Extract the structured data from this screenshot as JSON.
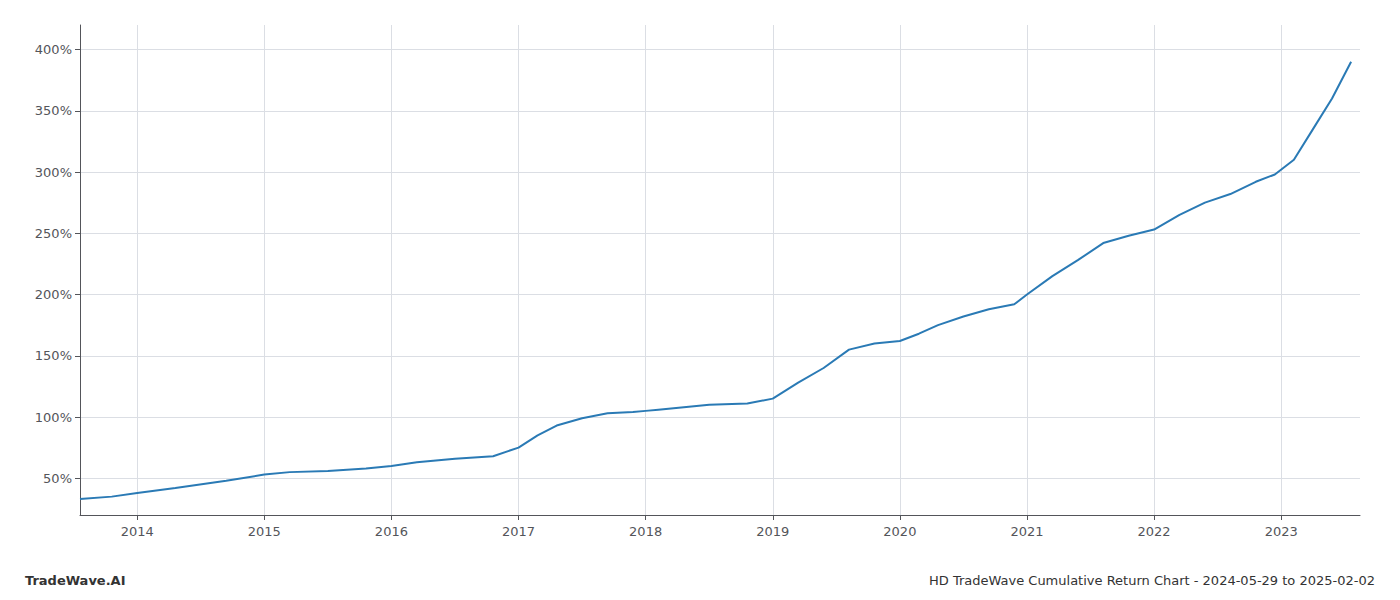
{
  "chart_data": {
    "type": "line",
    "title": "HD TradeWave Cumulative Return Chart - 2024-05-29 to 2025-02-02",
    "annotations": [
      "TradeWave.AI"
    ],
    "x": [
      2013.55,
      2013.8,
      2014.0,
      2014.3,
      2014.7,
      2015.0,
      2015.2,
      2015.5,
      2015.8,
      2016.0,
      2016.2,
      2016.5,
      2016.8,
      2017.0,
      2017.15,
      2017.3,
      2017.5,
      2017.7,
      2017.9,
      2018.0,
      2018.1,
      2018.3,
      2018.5,
      2018.8,
      2019.0,
      2019.2,
      2019.4,
      2019.6,
      2019.8,
      2020.0,
      2020.15,
      2020.3,
      2020.5,
      2020.7,
      2020.9,
      2021.0,
      2021.2,
      2021.4,
      2021.6,
      2021.8,
      2022.0,
      2022.2,
      2022.4,
      2022.6,
      2022.8,
      2022.95,
      2023.1,
      2023.25,
      2023.4,
      2023.55
    ],
    "values": [
      33,
      35,
      38,
      42,
      48,
      53,
      55,
      56,
      58,
      60,
      63,
      66,
      68,
      75,
      85,
      93,
      99,
      103,
      104,
      105,
      106,
      108,
      110,
      111,
      115,
      128,
      140,
      155,
      160,
      162,
      168,
      175,
      182,
      188,
      192,
      200,
      215,
      228,
      242,
      248,
      253,
      265,
      275,
      282,
      292,
      298,
      310,
      335,
      360,
      390
    ],
    "color": "#2a7ab5",
    "xlim": [
      2013.55,
      2023.62
    ],
    "xticks": [
      2014,
      2015,
      2016,
      2017,
      2018,
      2019,
      2020,
      2021,
      2022,
      2023
    ],
    "ylim": [
      20,
      420
    ],
    "yticks": [
      {
        "value": 50,
        "label": "50%"
      },
      {
        "value": 100,
        "label": "100%"
      },
      {
        "value": 150,
        "label": "150%"
      },
      {
        "value": 200,
        "label": "200%"
      },
      {
        "value": 250,
        "label": "250%"
      },
      {
        "value": 300,
        "label": "300%"
      },
      {
        "value": 350,
        "label": "350%"
      },
      {
        "value": 400,
        "label": "400%"
      }
    ],
    "grid": true
  }
}
